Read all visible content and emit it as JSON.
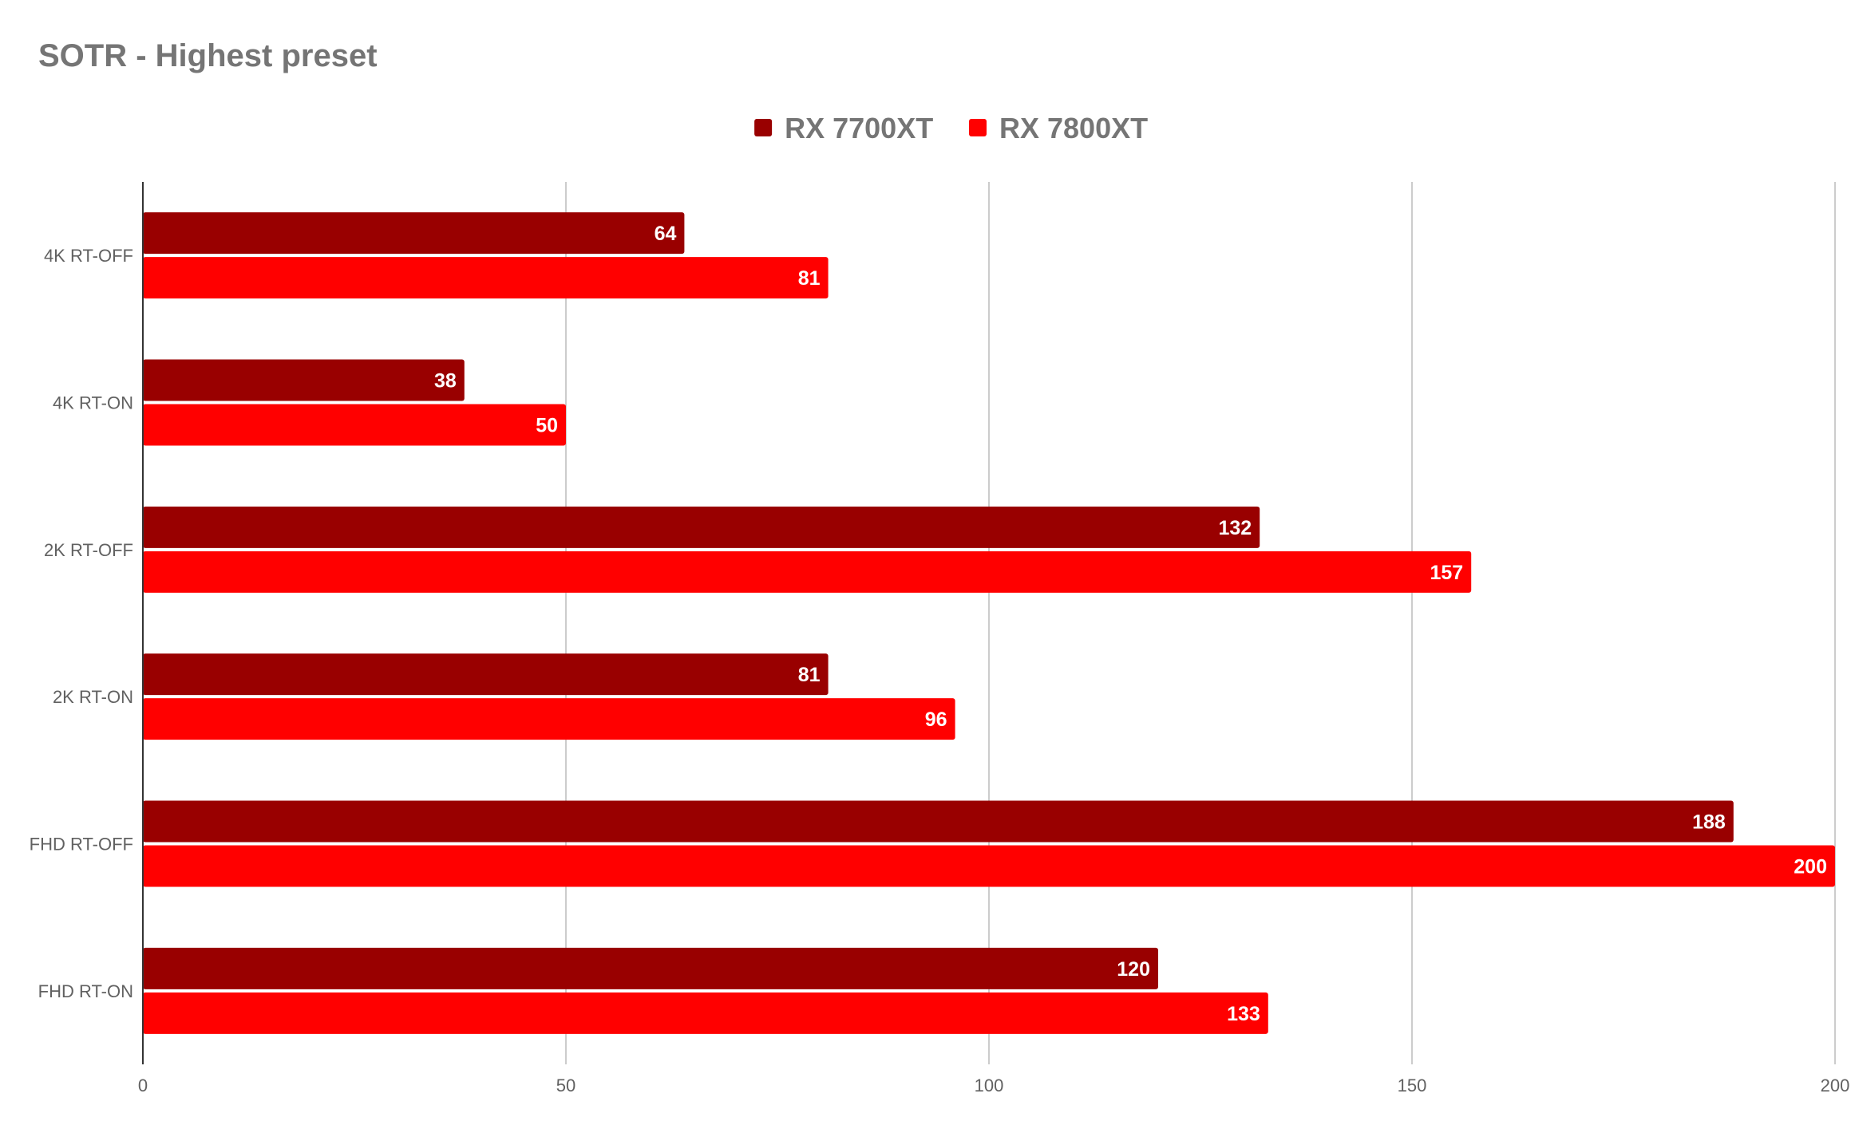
{
  "chart_data": {
    "type": "bar",
    "orientation": "horizontal",
    "title": "SOTR - Highest preset",
    "xlabel": "",
    "ylabel": "",
    "categories": [
      "4K RT-OFF",
      "4K RT-ON",
      "2K RT-OFF",
      "2K RT-ON",
      "FHD RT-OFF",
      "FHD RT-ON"
    ],
    "series": [
      {
        "name": "RX 7700XT",
        "color": "#990000",
        "values": [
          64,
          38,
          132,
          81,
          188,
          120
        ]
      },
      {
        "name": "RX 7800XT",
        "color": "#ff0000",
        "values": [
          81,
          50,
          157,
          96,
          200,
          133
        ]
      }
    ],
    "xlim": [
      0,
      200
    ],
    "xticks": [
      0,
      50,
      100,
      150,
      200
    ],
    "grid": true,
    "legend_position": "top-center",
    "data_labels": true
  }
}
